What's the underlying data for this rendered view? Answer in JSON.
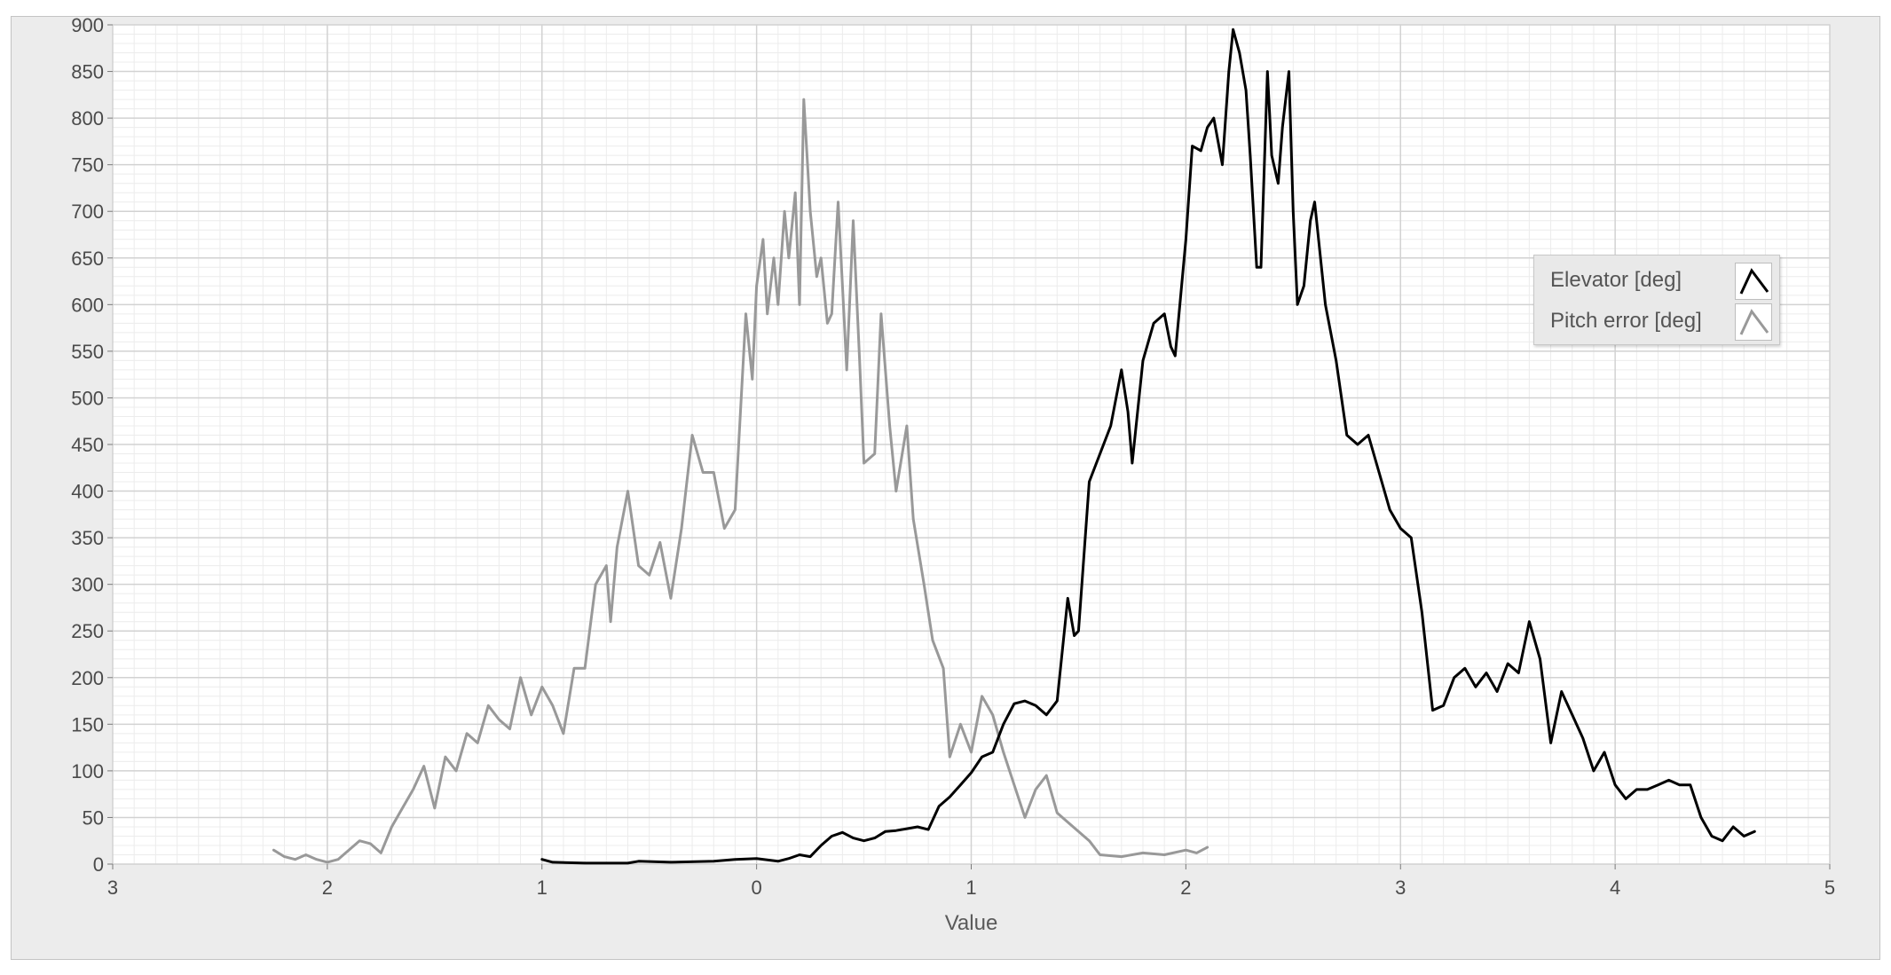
{
  "chart_data": {
    "type": "line",
    "title": "",
    "xlabel": "Value",
    "ylabel": "",
    "xlim": [
      -3,
      5
    ],
    "ylim": [
      0,
      900
    ],
    "grid": true,
    "legend_position": "right",
    "x_ticks": [
      -3,
      -2,
      -1,
      0,
      1,
      2,
      3,
      4,
      5
    ],
    "x_tick_labels": [
      "3",
      "2",
      "1",
      "0",
      "1",
      "2",
      "3",
      "4",
      "5"
    ],
    "y_ticks": [
      0,
      50,
      100,
      150,
      200,
      250,
      300,
      350,
      400,
      450,
      500,
      550,
      600,
      650,
      700,
      750,
      800,
      850,
      900
    ],
    "y_tick_labels": [
      "0",
      "50",
      "100",
      "150",
      "200",
      "250",
      "300",
      "350",
      "400",
      "450",
      "500",
      "550",
      "600",
      "650",
      "700",
      "750",
      "800",
      "850",
      "900"
    ],
    "series": [
      {
        "name": "Elevator [deg]",
        "color": "#000000",
        "points": [
          [
            -1.0,
            5
          ],
          [
            -0.95,
            2
          ],
          [
            -0.8,
            1
          ],
          [
            -0.6,
            1
          ],
          [
            -0.55,
            3
          ],
          [
            -0.4,
            2
          ],
          [
            -0.2,
            3
          ],
          [
            -0.1,
            5
          ],
          [
            0.0,
            6
          ],
          [
            0.1,
            3
          ],
          [
            0.15,
            6
          ],
          [
            0.2,
            10
          ],
          [
            0.25,
            8
          ],
          [
            0.3,
            20
          ],
          [
            0.35,
            30
          ],
          [
            0.4,
            34
          ],
          [
            0.45,
            28
          ],
          [
            0.5,
            25
          ],
          [
            0.55,
            28
          ],
          [
            0.6,
            35
          ],
          [
            0.65,
            36
          ],
          [
            0.7,
            38
          ],
          [
            0.75,
            40
          ],
          [
            0.8,
            37
          ],
          [
            0.85,
            62
          ],
          [
            0.9,
            72
          ],
          [
            0.95,
            85
          ],
          [
            1.0,
            98
          ],
          [
            1.05,
            115
          ],
          [
            1.1,
            120
          ],
          [
            1.15,
            150
          ],
          [
            1.2,
            172
          ],
          [
            1.25,
            175
          ],
          [
            1.3,
            170
          ],
          [
            1.35,
            160
          ],
          [
            1.4,
            175
          ],
          [
            1.45,
            285
          ],
          [
            1.48,
            245
          ],
          [
            1.5,
            250
          ],
          [
            1.55,
            410
          ],
          [
            1.6,
            440
          ],
          [
            1.65,
            470
          ],
          [
            1.7,
            530
          ],
          [
            1.73,
            485
          ],
          [
            1.75,
            430
          ],
          [
            1.8,
            540
          ],
          [
            1.85,
            580
          ],
          [
            1.9,
            590
          ],
          [
            1.93,
            555
          ],
          [
            1.95,
            545
          ],
          [
            2.0,
            670
          ],
          [
            2.03,
            770
          ],
          [
            2.07,
            765
          ],
          [
            2.1,
            790
          ],
          [
            2.13,
            800
          ],
          [
            2.17,
            750
          ],
          [
            2.2,
            850
          ],
          [
            2.22,
            895
          ],
          [
            2.25,
            870
          ],
          [
            2.28,
            830
          ],
          [
            2.3,
            760
          ],
          [
            2.33,
            640
          ],
          [
            2.35,
            640
          ],
          [
            2.38,
            850
          ],
          [
            2.4,
            760
          ],
          [
            2.43,
            730
          ],
          [
            2.45,
            790
          ],
          [
            2.48,
            850
          ],
          [
            2.5,
            700
          ],
          [
            2.52,
            600
          ],
          [
            2.55,
            620
          ],
          [
            2.58,
            690
          ],
          [
            2.6,
            710
          ],
          [
            2.65,
            600
          ],
          [
            2.7,
            540
          ],
          [
            2.75,
            460
          ],
          [
            2.8,
            450
          ],
          [
            2.85,
            460
          ],
          [
            2.9,
            420
          ],
          [
            2.95,
            380
          ],
          [
            3.0,
            360
          ],
          [
            3.05,
            350
          ],
          [
            3.1,
            270
          ],
          [
            3.15,
            165
          ],
          [
            3.2,
            170
          ],
          [
            3.25,
            200
          ],
          [
            3.3,
            210
          ],
          [
            3.35,
            190
          ],
          [
            3.4,
            205
          ],
          [
            3.45,
            185
          ],
          [
            3.5,
            215
          ],
          [
            3.55,
            205
          ],
          [
            3.6,
            260
          ],
          [
            3.65,
            220
          ],
          [
            3.7,
            130
          ],
          [
            3.75,
            185
          ],
          [
            3.8,
            160
          ],
          [
            3.85,
            135
          ],
          [
            3.9,
            100
          ],
          [
            3.95,
            120
          ],
          [
            4.0,
            85
          ],
          [
            4.05,
            70
          ],
          [
            4.1,
            80
          ],
          [
            4.15,
            80
          ],
          [
            4.2,
            85
          ],
          [
            4.25,
            90
          ],
          [
            4.3,
            85
          ],
          [
            4.35,
            85
          ],
          [
            4.4,
            50
          ],
          [
            4.45,
            30
          ],
          [
            4.5,
            25
          ],
          [
            4.55,
            40
          ],
          [
            4.6,
            30
          ],
          [
            4.65,
            35
          ]
        ]
      },
      {
        "name": "Pitch error [deg]",
        "color": "#999999",
        "points": [
          [
            -2.25,
            15
          ],
          [
            -2.2,
            8
          ],
          [
            -2.15,
            5
          ],
          [
            -2.1,
            10
          ],
          [
            -2.05,
            5
          ],
          [
            -2.0,
            2
          ],
          [
            -1.95,
            5
          ],
          [
            -1.9,
            15
          ],
          [
            -1.85,
            25
          ],
          [
            -1.8,
            22
          ],
          [
            -1.75,
            12
          ],
          [
            -1.7,
            40
          ],
          [
            -1.65,
            60
          ],
          [
            -1.6,
            80
          ],
          [
            -1.55,
            105
          ],
          [
            -1.5,
            60
          ],
          [
            -1.45,
            115
          ],
          [
            -1.4,
            100
          ],
          [
            -1.35,
            140
          ],
          [
            -1.3,
            130
          ],
          [
            -1.25,
            170
          ],
          [
            -1.2,
            155
          ],
          [
            -1.15,
            145
          ],
          [
            -1.1,
            200
          ],
          [
            -1.05,
            160
          ],
          [
            -1.0,
            190
          ],
          [
            -0.95,
            170
          ],
          [
            -0.9,
            140
          ],
          [
            -0.85,
            210
          ],
          [
            -0.8,
            210
          ],
          [
            -0.75,
            300
          ],
          [
            -0.7,
            320
          ],
          [
            -0.68,
            260
          ],
          [
            -0.65,
            340
          ],
          [
            -0.6,
            400
          ],
          [
            -0.55,
            320
          ],
          [
            -0.5,
            310
          ],
          [
            -0.45,
            345
          ],
          [
            -0.4,
            285
          ],
          [
            -0.35,
            360
          ],
          [
            -0.3,
            460
          ],
          [
            -0.25,
            420
          ],
          [
            -0.2,
            420
          ],
          [
            -0.15,
            360
          ],
          [
            -0.1,
            380
          ],
          [
            -0.05,
            590
          ],
          [
            -0.02,
            520
          ],
          [
            0.0,
            620
          ],
          [
            0.03,
            670
          ],
          [
            0.05,
            590
          ],
          [
            0.08,
            650
          ],
          [
            0.1,
            600
          ],
          [
            0.13,
            700
          ],
          [
            0.15,
            650
          ],
          [
            0.18,
            720
          ],
          [
            0.2,
            600
          ],
          [
            0.22,
            820
          ],
          [
            0.25,
            700
          ],
          [
            0.28,
            630
          ],
          [
            0.3,
            650
          ],
          [
            0.33,
            580
          ],
          [
            0.35,
            590
          ],
          [
            0.38,
            710
          ],
          [
            0.4,
            620
          ],
          [
            0.42,
            530
          ],
          [
            0.45,
            690
          ],
          [
            0.48,
            540
          ],
          [
            0.5,
            430
          ],
          [
            0.55,
            440
          ],
          [
            0.58,
            590
          ],
          [
            0.62,
            470
          ],
          [
            0.65,
            400
          ],
          [
            0.7,
            470
          ],
          [
            0.73,
            370
          ],
          [
            0.78,
            300
          ],
          [
            0.82,
            240
          ],
          [
            0.87,
            210
          ],
          [
            0.9,
            115
          ],
          [
            0.95,
            150
          ],
          [
            1.0,
            120
          ],
          [
            1.05,
            180
          ],
          [
            1.1,
            160
          ],
          [
            1.15,
            120
          ],
          [
            1.2,
            85
          ],
          [
            1.25,
            50
          ],
          [
            1.3,
            80
          ],
          [
            1.35,
            95
          ],
          [
            1.4,
            55
          ],
          [
            1.45,
            45
          ],
          [
            1.5,
            35
          ],
          [
            1.55,
            25
          ],
          [
            1.6,
            10
          ],
          [
            1.7,
            8
          ],
          [
            1.8,
            12
          ],
          [
            1.9,
            10
          ],
          [
            2.0,
            15
          ],
          [
            2.05,
            12
          ],
          [
            2.1,
            18
          ]
        ]
      }
    ]
  }
}
